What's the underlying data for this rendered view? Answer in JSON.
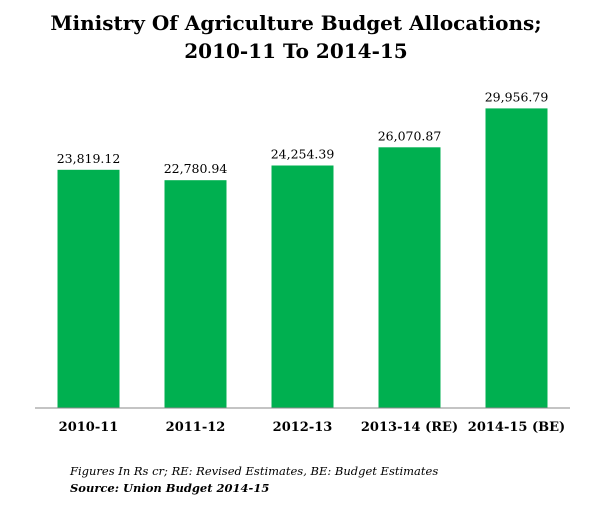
{
  "chart_data": {
    "type": "bar",
    "title": "Ministry Of Agriculture  Budget Allocations;",
    "subtitle": "2010-11 To 2014-15",
    "categories": [
      "2010-11",
      "2011-12",
      "2012-13",
      "2013-14 (RE)",
      "2014-15 (BE)"
    ],
    "values": [
      23819.12,
      22780.94,
      24254.39,
      26070.87,
      29956.79
    ],
    "value_labels": [
      "23,819.12",
      "22,780.94",
      "24,254.39",
      "26,070.87",
      "29,956.79"
    ],
    "ylim": [
      0,
      30000
    ],
    "grid": false,
    "legend": "none",
    "bar_color": "#00b050",
    "axis_color": "#888888"
  },
  "footer": {
    "note": "Figures In Rs cr; RE: Revised Estimates, BE: Budget Estimates",
    "source": "Source: Union Budget 2014-15"
  }
}
